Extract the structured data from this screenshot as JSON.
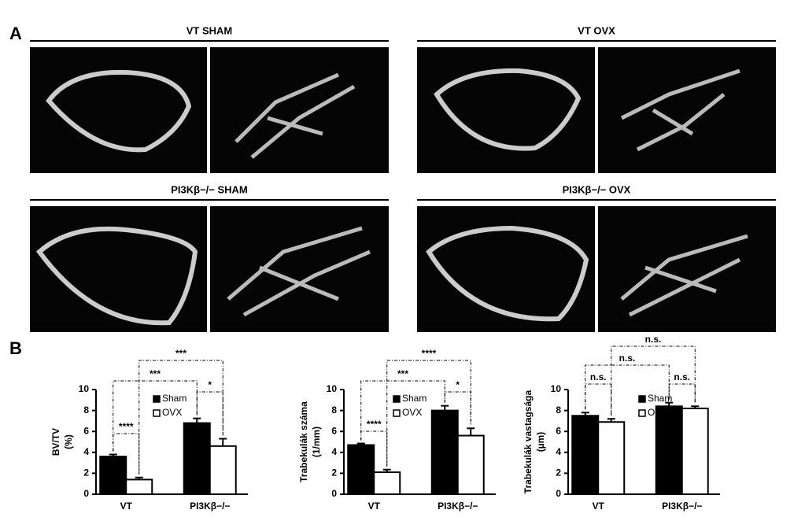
{
  "panel_labels": [
    "A",
    "B"
  ],
  "image_groups": [
    {
      "title": "VT SHAM"
    },
    {
      "title": "VT OVX"
    },
    {
      "title": "PI3Kβ−/− SHAM"
    },
    {
      "title": "PI3Kβ−/− OVX"
    }
  ],
  "chart_data": [
    {
      "type": "bar",
      "y_label": [
        "BV/TV",
        "(%)"
      ],
      "categories": [
        "VT",
        "PI3Kβ−/−"
      ],
      "series": [
        {
          "name": "Sham",
          "color": "#000000",
          "values": [
            3.6,
            6.8
          ],
          "errors": [
            0.2,
            0.45
          ]
        },
        {
          "name": "OVX",
          "color": "#ffffff",
          "values": [
            1.4,
            4.6
          ],
          "errors": [
            0.2,
            0.7
          ]
        }
      ],
      "ylim": [
        0,
        10
      ],
      "yticks": [
        0,
        2,
        4,
        6,
        8,
        10
      ],
      "annotations": [
        "****",
        "***",
        "***",
        "*"
      ]
    },
    {
      "type": "bar",
      "y_label": [
        "Trabekulák száma",
        "(1/mm)"
      ],
      "categories": [
        "VT",
        "PI3Kβ−/−"
      ],
      "series": [
        {
          "name": "Sham",
          "color": "#000000",
          "values": [
            4.7,
            8.0
          ],
          "errors": [
            0.15,
            0.45
          ]
        },
        {
          "name": "OVX",
          "color": "#ffffff",
          "values": [
            2.1,
            5.6
          ],
          "errors": [
            0.25,
            0.7
          ]
        }
      ],
      "ylim": [
        0,
        10
      ],
      "yticks": [
        0,
        2,
        4,
        6,
        8,
        10
      ],
      "annotations": [
        "****",
        "***",
        "****",
        "*"
      ]
    },
    {
      "type": "bar",
      "y_label": [
        "Trabekulák vastagsága",
        "(µm)"
      ],
      "categories": [
        "VT",
        "PI3Kβ−/−"
      ],
      "series": [
        {
          "name": "Sham",
          "color": "#000000",
          "values": [
            7.5,
            8.4
          ],
          "errors": [
            0.3,
            0.35
          ]
        },
        {
          "name": "OVX",
          "color": "#ffffff",
          "values": [
            6.9,
            8.2
          ],
          "errors": [
            0.3,
            0.2
          ]
        }
      ],
      "ylim": [
        0,
        10
      ],
      "yticks": [
        0,
        2,
        4,
        6,
        8,
        10
      ],
      "annotations": [
        "n.s.",
        "n.s.",
        "n.s.",
        "n.s."
      ]
    }
  ]
}
